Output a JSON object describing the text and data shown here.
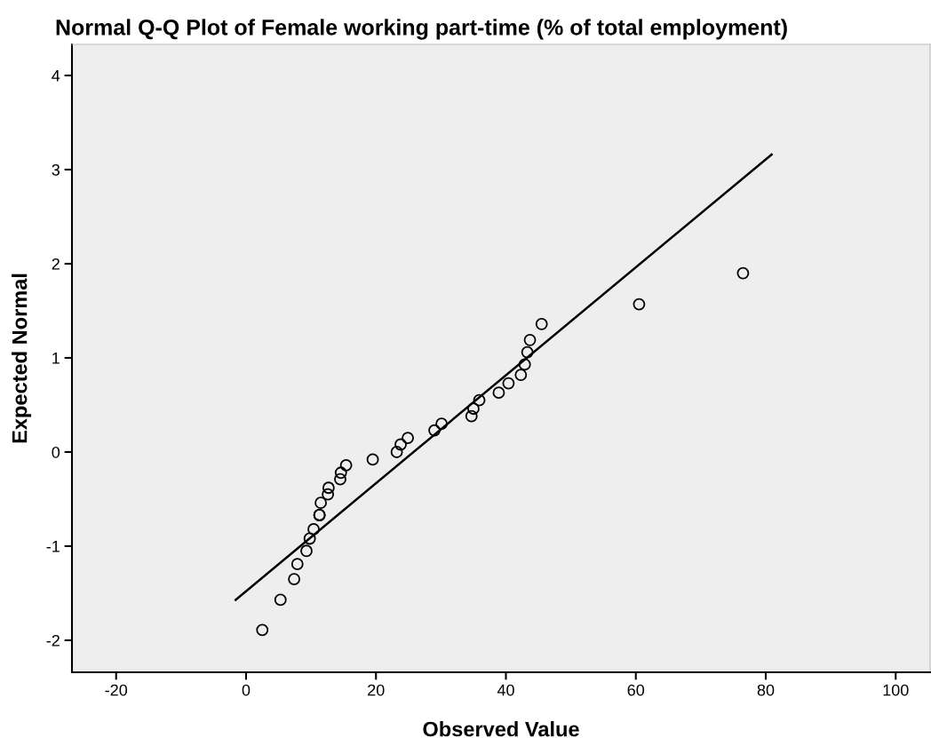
{
  "chart_data": {
    "type": "scatter",
    "title": "Normal Q-Q Plot of Female working part-time (% of total employment)",
    "xlabel": "Observed Value",
    "ylabel": "Expected Normal",
    "series": [
      {
        "color": "#000000",
        "marker": "circle",
        "x": [
          2.5,
          5.3,
          7.4,
          7.9,
          9.3,
          9.8,
          10.4,
          11.3,
          11.3,
          11.5,
          12.6,
          12.7,
          14.5,
          14.6,
          15.4,
          19.5,
          23.2,
          23.8,
          24.9,
          29.0,
          30.1,
          34.7,
          35.0,
          35.9,
          38.9,
          40.4,
          42.3,
          42.9,
          43.3,
          43.7,
          45.5,
          60.5,
          76.5
        ],
        "values": [
          -1.89,
          -1.57,
          -1.35,
          -1.19,
          -1.05,
          -0.92,
          -0.82,
          -0.67,
          -0.67,
          -0.54,
          -0.45,
          -0.38,
          -0.29,
          -0.22,
          -0.14,
          -0.08,
          0.0,
          0.08,
          0.15,
          0.23,
          0.3,
          0.38,
          0.46,
          0.55,
          0.63,
          0.73,
          0.82,
          0.93,
          1.06,
          1.19,
          1.36,
          1.57,
          1.9
        ]
      },
      {
        "type": "line",
        "color": "#000000",
        "marker": "none",
        "line_style": "solid",
        "x": [
          -1.6,
          80.9
        ],
        "values": [
          -1.57,
          3.16
        ]
      }
    ],
    "xlim": [
      -26.8,
      105.3
    ],
    "ylim": [
      -2.34,
      4.33
    ],
    "xticks": [
      -20,
      0,
      20,
      40,
      60,
      80,
      100
    ],
    "yticks": [
      -2,
      -1,
      0,
      1,
      2,
      3,
      4
    ],
    "grid": false,
    "legend": false
  }
}
